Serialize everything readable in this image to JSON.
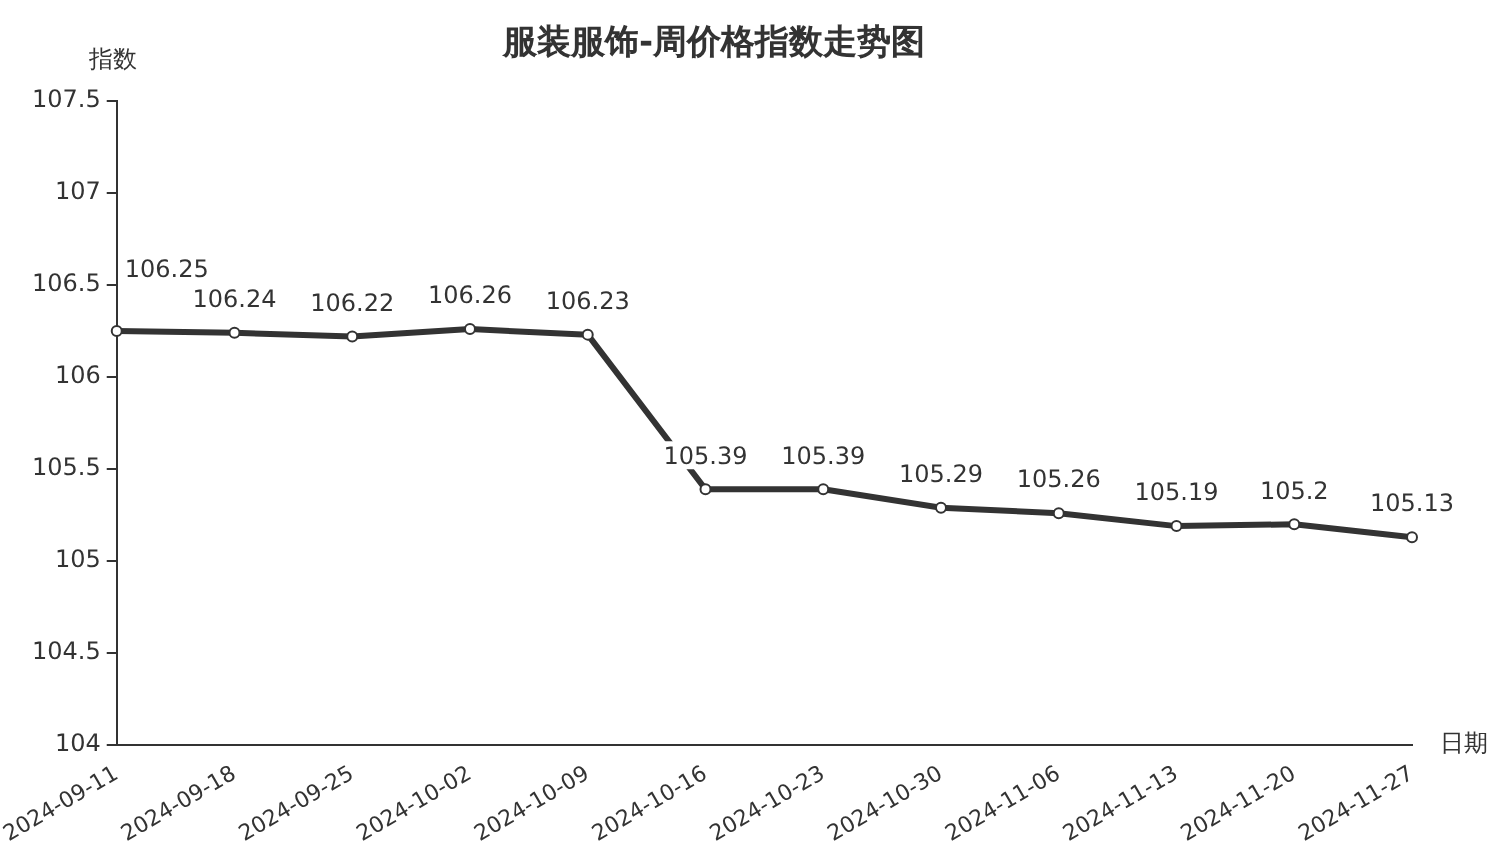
{
  "chart_data": {
    "type": "line",
    "title": "服装服饰-周价格指数走势图",
    "xlabel": "日期",
    "ylabel": "指数",
    "categories": [
      "2024-09-11",
      "2024-09-18",
      "2024-09-25",
      "2024-10-02",
      "2024-10-09",
      "2024-10-16",
      "2024-10-23",
      "2024-10-30",
      "2024-11-06",
      "2024-11-13",
      "2024-11-20",
      "2024-11-27"
    ],
    "series": [
      {
        "color": "#333333",
        "values": [
          106.25,
          106.24,
          106.22,
          106.26,
          106.23,
          105.39,
          105.39,
          105.29,
          105.26,
          105.19,
          105.2,
          105.13
        ]
      }
    ],
    "ylim": [
      104,
      107.5
    ],
    "yticks": [
      104,
      104.5,
      105,
      105.5,
      106,
      106.5,
      107,
      107.5
    ],
    "grid": false,
    "legend": false,
    "marker": "circle",
    "line_style": "solid",
    "data_labels": true
  }
}
